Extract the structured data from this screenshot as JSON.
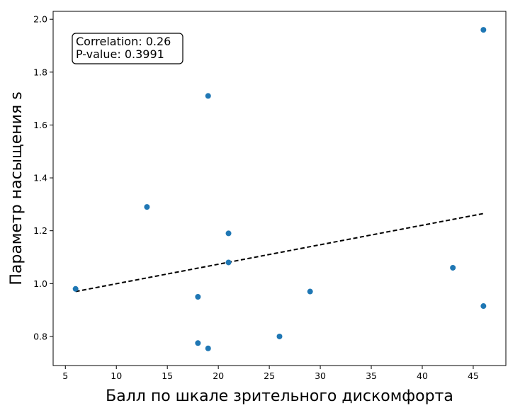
{
  "chart_data": {
    "type": "scatter",
    "xlabel": "Балл по шкале зрительного дискомфорта",
    "ylabel": "Параметр насыщения s",
    "xlim": [
      3.8,
      48.2
    ],
    "ylim": [
      0.69,
      2.03
    ],
    "x_ticks": [
      5,
      10,
      15,
      20,
      25,
      30,
      35,
      40,
      45
    ],
    "y_ticks": [
      0.8,
      1.0,
      1.2,
      1.4,
      1.6,
      1.8,
      2.0
    ],
    "x_tick_labels": [
      "5",
      "10",
      "15",
      "20",
      "25",
      "30",
      "35",
      "40",
      "45"
    ],
    "y_tick_labels": [
      "0.8",
      "1.0",
      "1.2",
      "1.4",
      "1.6",
      "1.8",
      "2.0"
    ],
    "points": [
      {
        "x": 6,
        "y": 0.98
      },
      {
        "x": 13,
        "y": 1.29
      },
      {
        "x": 18,
        "y": 0.95
      },
      {
        "x": 18,
        "y": 0.775
      },
      {
        "x": 19,
        "y": 1.71
      },
      {
        "x": 19,
        "y": 0.755
      },
      {
        "x": 21,
        "y": 1.19
      },
      {
        "x": 21,
        "y": 1.08
      },
      {
        "x": 26,
        "y": 0.8
      },
      {
        "x": 29,
        "y": 0.97
      },
      {
        "x": 43,
        "y": 1.06
      },
      {
        "x": 46,
        "y": 1.96
      },
      {
        "x": 46,
        "y": 0.915
      }
    ],
    "trendline": {
      "x": [
        6,
        46
      ],
      "y": [
        0.97,
        1.265
      ],
      "style": "dashed",
      "color": "#000000"
    },
    "annotation": {
      "lines": [
        "Correlation: 0.26",
        "P-value: 0.3991"
      ],
      "placement": "top-left"
    },
    "point_color": "#1f77b4",
    "grid": false
  }
}
